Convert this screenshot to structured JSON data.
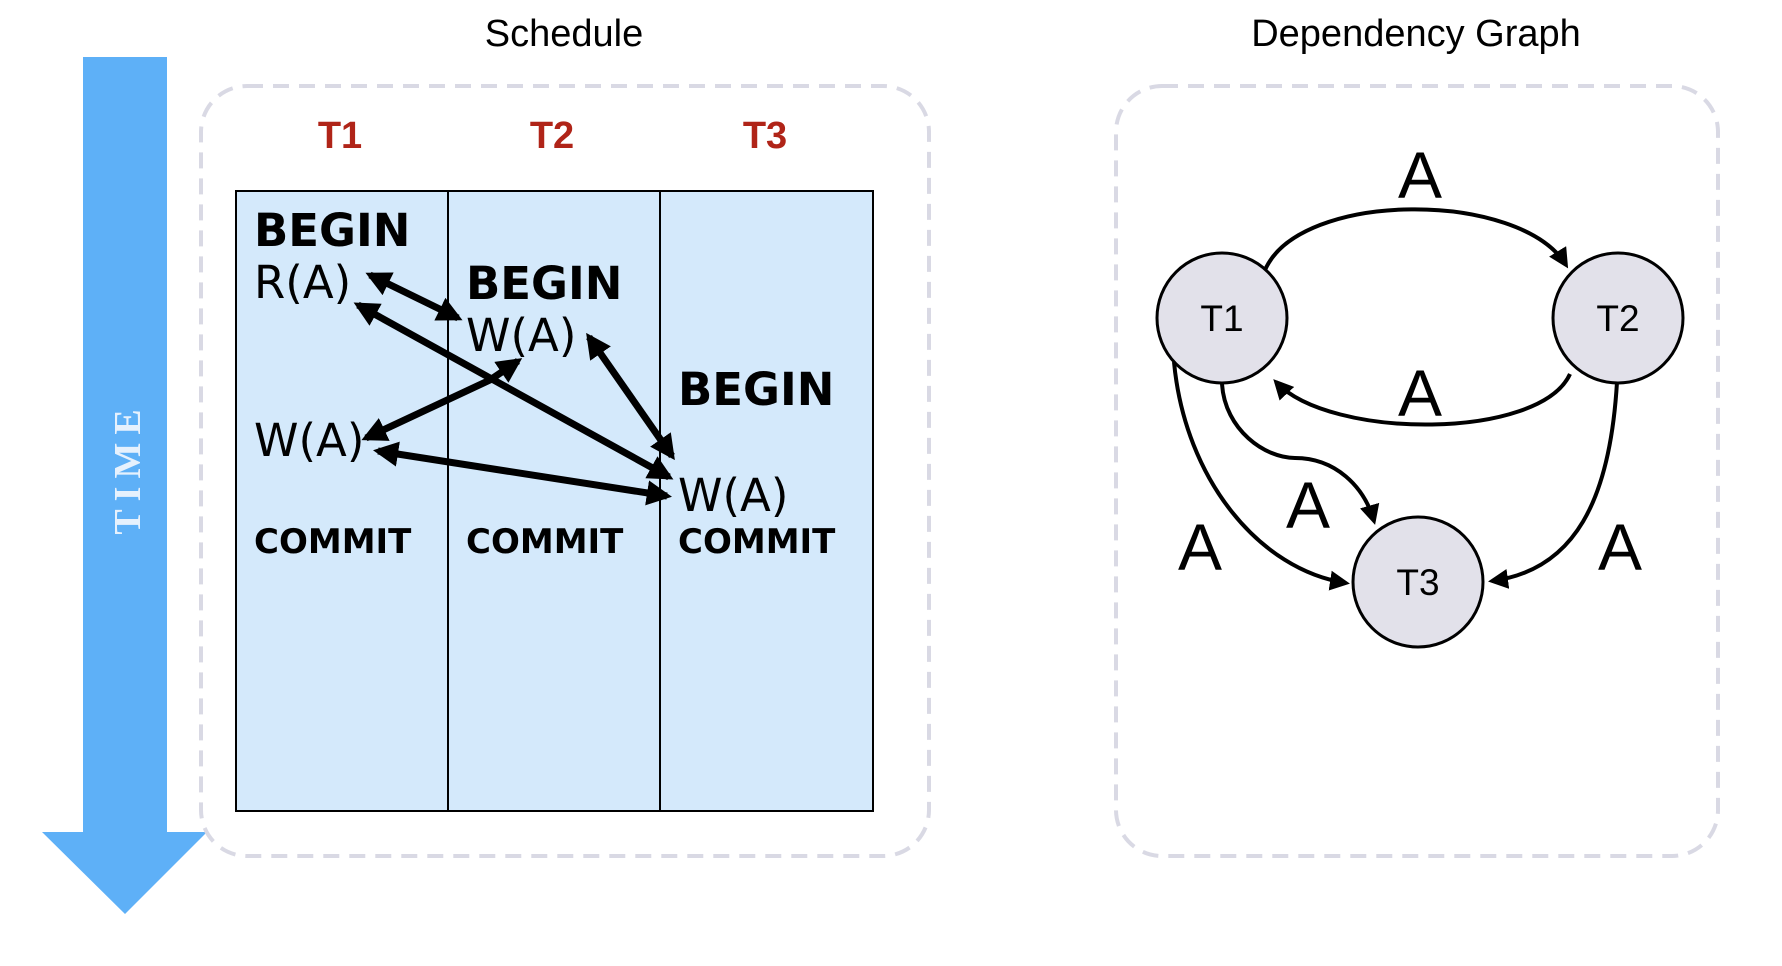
{
  "time_axis": {
    "label": "TIME",
    "color": "#5eb0f7"
  },
  "schedule": {
    "title": "Schedule",
    "header_color": "#b02418",
    "column_fill": "#d4e9fb",
    "columns": [
      {
        "header": "T1",
        "ops": [
          {
            "id": "t1-begin",
            "text": "BEGIN",
            "style": "bold"
          },
          {
            "id": "t1-read-a",
            "text": "R(A)",
            "style": "normal"
          },
          {
            "id": "t1-write-a",
            "text": "W(A)",
            "style": "normal"
          },
          {
            "id": "t1-commit",
            "text": "COMMIT",
            "style": "commit"
          }
        ]
      },
      {
        "header": "T2",
        "ops": [
          {
            "id": "t2-begin",
            "text": "BEGIN",
            "style": "bold"
          },
          {
            "id": "t2-write-a",
            "text": "W(A)",
            "style": "normal"
          },
          {
            "id": "t2-commit",
            "text": "COMMIT",
            "style": "commit"
          }
        ]
      },
      {
        "header": "T3",
        "ops": [
          {
            "id": "t3-begin",
            "text": "BEGIN",
            "style": "bold"
          },
          {
            "id": "t3-write-a",
            "text": "W(A)",
            "style": "normal"
          },
          {
            "id": "t3-commit",
            "text": "COMMIT",
            "style": "commit"
          }
        ]
      }
    ]
  },
  "dependency_graph": {
    "title": "Dependency Graph",
    "node_fill": "#e2e1ea",
    "nodes": [
      {
        "id": "T1",
        "label": "T1"
      },
      {
        "id": "T2",
        "label": "T2"
      },
      {
        "id": "T3",
        "label": "T3"
      }
    ],
    "edges": [
      {
        "from": "T1",
        "to": "T2",
        "label": "A"
      },
      {
        "from": "T2",
        "to": "T1",
        "label": "A"
      },
      {
        "from": "T1",
        "to": "T3",
        "label": "A"
      },
      {
        "from": "T1",
        "to": "T3",
        "label": "A"
      },
      {
        "from": "T2",
        "to": "T3",
        "label": "A"
      }
    ]
  }
}
